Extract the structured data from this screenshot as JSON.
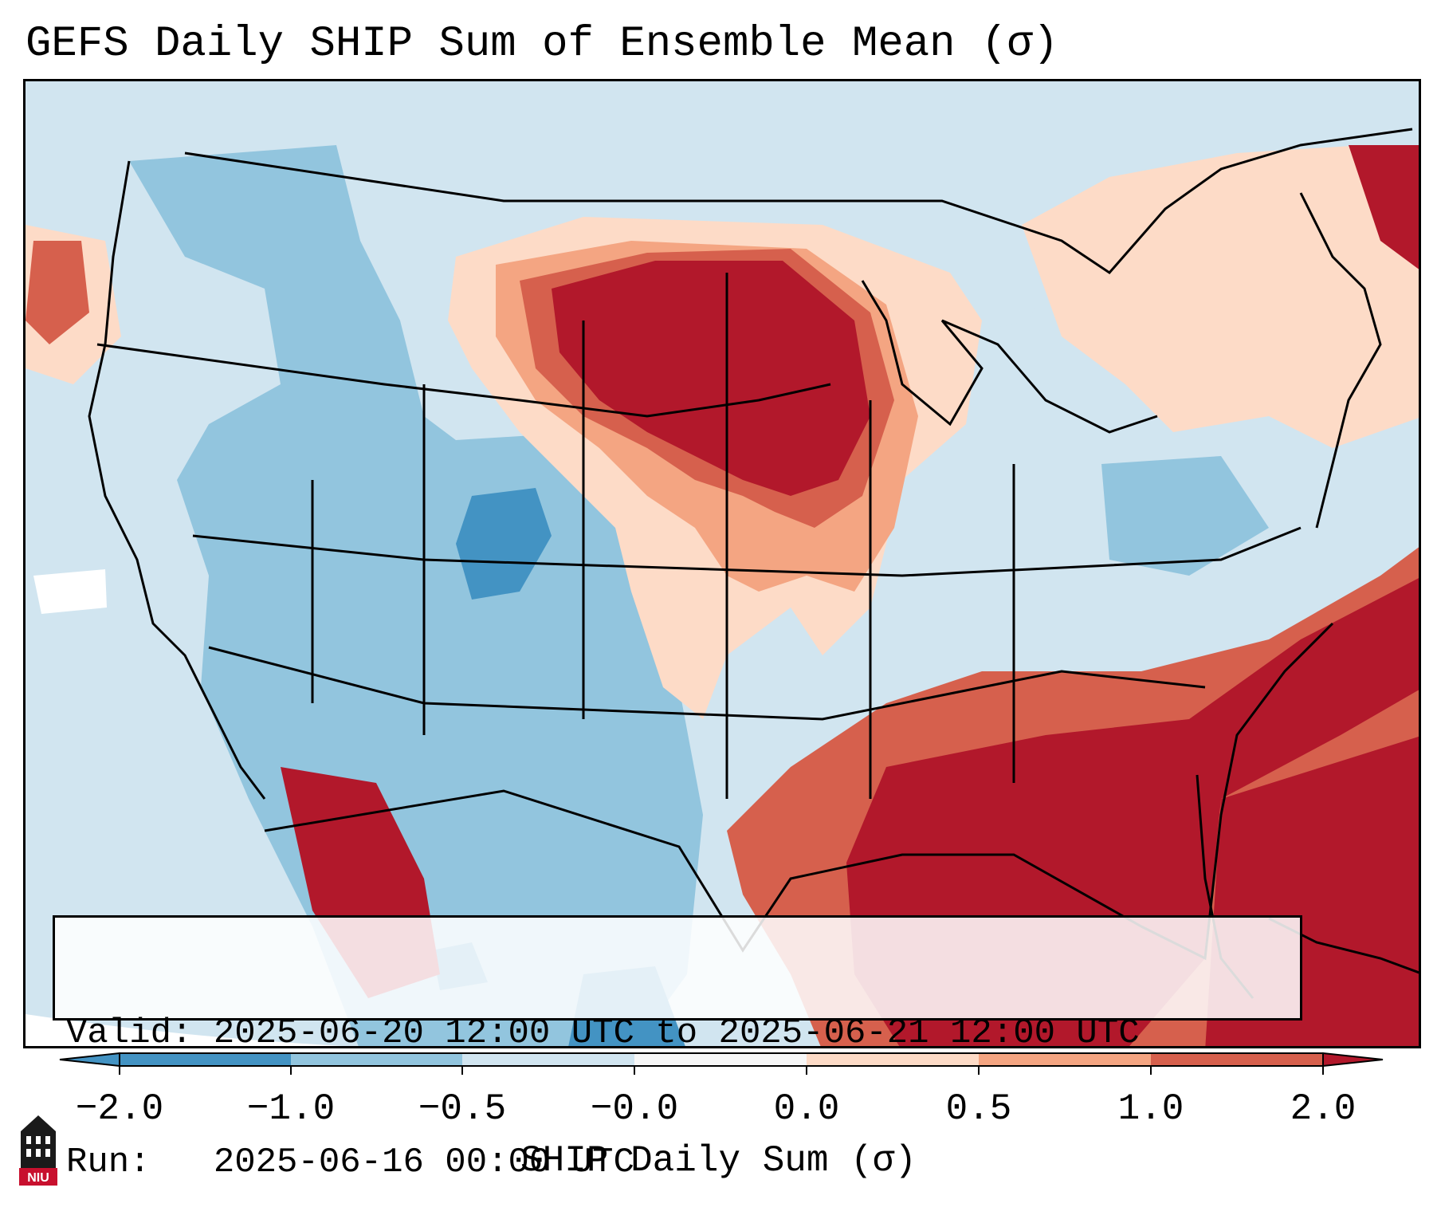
{
  "title": "GEFS Daily SHIP Sum of Ensemble Mean (σ)",
  "info": {
    "valid_label": "Valid:",
    "valid_value": "2025-06-20 12:00 UTC to 2025-06-21 12:00 UTC",
    "run_label": "Run:",
    "run_value": "2025-06-16 00:00 UTC"
  },
  "colorbar": {
    "label": "SHIP Daily Sum (σ)",
    "ticks": [
      "−2.0",
      "−1.0",
      "−0.5",
      "−0.0",
      "0.0",
      "0.5",
      "1.0",
      "2.0"
    ],
    "colors": [
      "#4393c3",
      "#92c5de",
      "#d1e5f0",
      "#f7f7f7",
      "#fddbc7",
      "#f4a582",
      "#d6604d",
      "#b2182b"
    ],
    "extend": "both"
  },
  "palette": {
    "strong_neg": "#4393c3",
    "neg": "#92c5de",
    "weak_neg": "#d1e5f0",
    "neutral": "#f7f7f7",
    "weak_pos": "#fddbc7",
    "pos": "#f4a582",
    "strong_pos": "#d6604d",
    "very_strong_pos": "#b2182b"
  },
  "logo": {
    "text": "NIU",
    "name": "Northern Illinois University"
  },
  "regions": [
    "Upper Midwest / Northern Plains — strongly positive",
    "Gulf of Mexico / Southeast / Atlantic — strongly positive",
    "Four Corners / Colorado Rockies — negative",
    "West Coast / Pacific — weakly negative"
  ]
}
